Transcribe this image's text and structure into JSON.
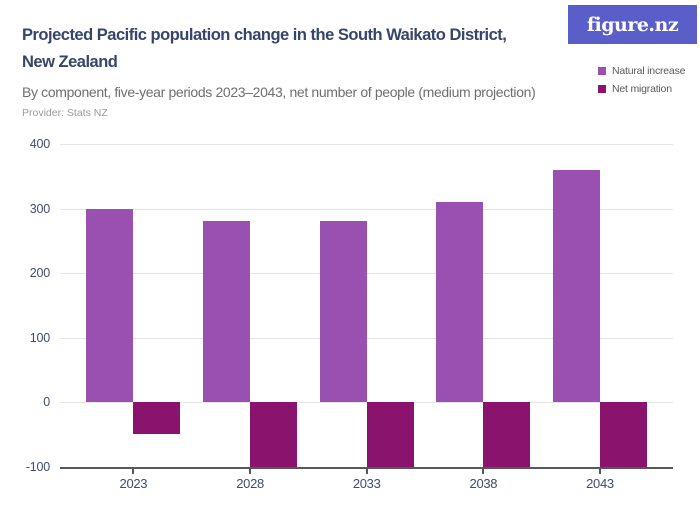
{
  "header": {
    "title_lines": [
      "Projected Pacific population change in the South Waikato District,",
      "New Zealand"
    ],
    "subtitle": "By component, five-year periods 2023–2043, net number of people (medium projection)",
    "provider": "Provider: Stats NZ",
    "logo_text": "figure.nz"
  },
  "legend": {
    "items": [
      {
        "label": "Natural increase",
        "color": "#9a50b1"
      },
      {
        "label": "Net migration",
        "color": "#8a136d"
      }
    ]
  },
  "chart_data": {
    "type": "bar",
    "title": "Projected Pacific population change in the South Waikato District, New Zealand",
    "subtitle": "By component, five-year periods 2023–2043, net number of people (medium projection)",
    "categories": [
      "2023",
      "2028",
      "2033",
      "2038",
      "2043"
    ],
    "series": [
      {
        "name": "Natural increase",
        "color": "#9a50b1",
        "values": [
          300,
          280,
          280,
          310,
          360
        ]
      },
      {
        "name": "Net migration",
        "color": "#8a136d",
        "values": [
          -50,
          -100,
          -100,
          -100,
          -100
        ]
      }
    ],
    "xlabel": "",
    "ylabel": "",
    "ylim": [
      -100,
      400
    ],
    "ytick_step": 100,
    "grid": true,
    "legend_position": "top-right"
  },
  "colors": {
    "background": "#ffffff",
    "title": "#36456b",
    "subtitle": "#6e6e6e",
    "provider": "#9a9a9a",
    "legend_text": "#595959",
    "logo_bg": "#5a5ec8",
    "logo_text": "#ffffff",
    "axis_label": "#3d4d71",
    "gridline": "#e4e4e4",
    "axis_line": "#55585c",
    "natural_increase": "#9a50b1",
    "net_migration": "#8a136d"
  }
}
